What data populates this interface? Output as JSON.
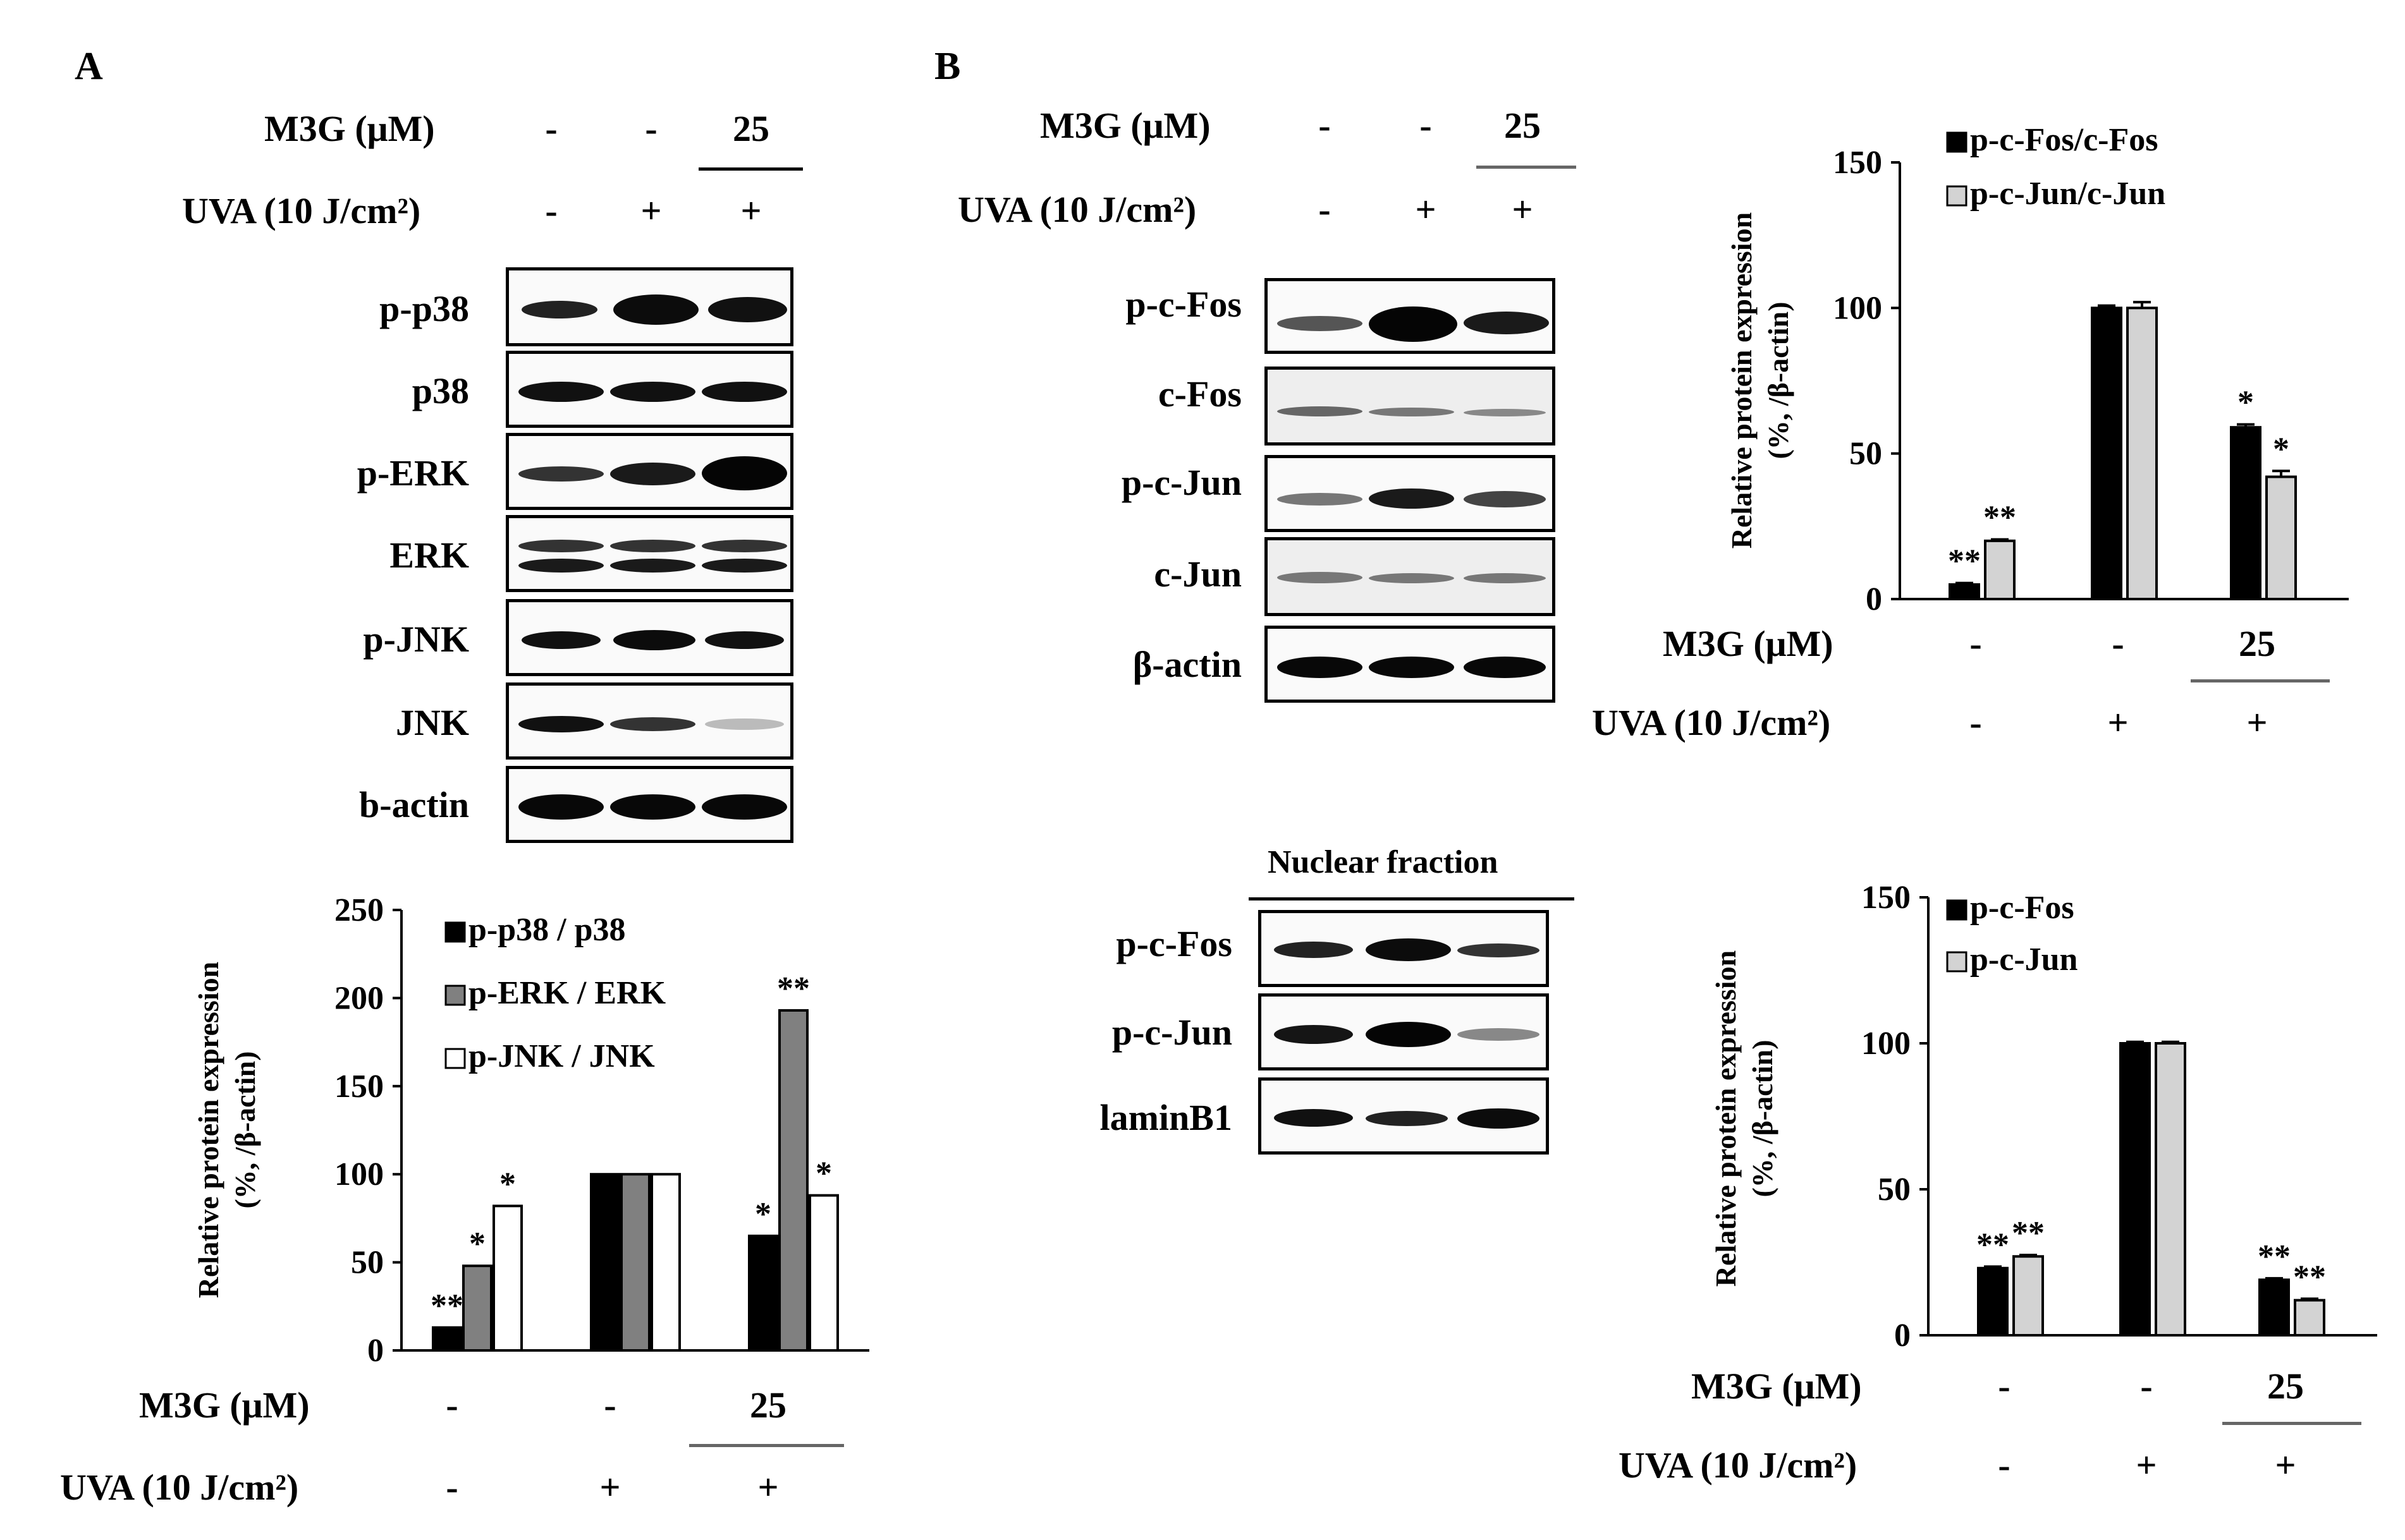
{
  "panels": {
    "a": "A",
    "b": "B"
  },
  "conditions": {
    "m3g_label": "M3G (μM)",
    "uva_label": "UVA (10 J/cm²)",
    "m3g_values": [
      "-",
      "-",
      "25"
    ],
    "uva_values": [
      "-",
      "+",
      "+"
    ]
  },
  "blots": {
    "a_labels": [
      "p-p38",
      "p38",
      "p-ERK",
      "ERK",
      "p-JNK",
      "JNK",
      "b-actin"
    ],
    "b_labels": [
      "p-c-Fos",
      "c-Fos",
      "p-c-Jun",
      "c-Jun",
      "β-actin"
    ],
    "nuclear_title": "Nuclear fraction",
    "nuclear_labels": [
      "p-c-Fos",
      "p-c-Jun",
      "laminB1"
    ]
  },
  "chart_data": [
    {
      "type": "bar",
      "ylabel": "Relative protein expression",
      "ylabel2": "(%, /β-actin)",
      "ylim": [
        0,
        250
      ],
      "yticks": [
        "0",
        "50",
        "100",
        "150",
        "200",
        "250"
      ],
      "groups": 3,
      "series": [
        {
          "name": "p-p38 / p38",
          "values": [
            13,
            100,
            65
          ],
          "stars": [
            "**",
            "",
            "*"
          ],
          "color": "#000000"
        },
        {
          "name": "p-ERK / ERK",
          "values": [
            48,
            100,
            193
          ],
          "stars": [
            "*",
            "",
            "**"
          ],
          "color": "#808080"
        },
        {
          "name": "p-JNK / JNK",
          "values": [
            82,
            100,
            88
          ],
          "stars": [
            "*",
            "",
            "*"
          ],
          "color": "#ffffff"
        }
      ]
    },
    {
      "type": "bar",
      "ylabel": "Relative protein expression",
      "ylabel2": "(%, /β-actin)",
      "ylim": [
        0,
        150
      ],
      "yticks": [
        "0",
        "50",
        "100",
        "150"
      ],
      "groups": 3,
      "series": [
        {
          "name": "p-c-Fos/c-Fos",
          "values": [
            5,
            100,
            59
          ],
          "errors": [
            0.5,
            0.8,
            1
          ],
          "stars": [
            "**",
            "",
            "*"
          ],
          "color": "#000000"
        },
        {
          "name": "p-c-Jun/c-Jun",
          "values": [
            20,
            100,
            42
          ],
          "errors": [
            0.5,
            2,
            2
          ],
          "stars": [
            "**",
            "",
            "*"
          ],
          "color": "#d3d3d3"
        }
      ]
    },
    {
      "type": "bar",
      "ylabel": "Relative protein expression",
      "ylabel2": "(%, /β-actin)",
      "ylim": [
        0,
        150
      ],
      "yticks": [
        "0",
        "50",
        "100",
        "150"
      ],
      "groups": 3,
      "series": [
        {
          "name": "p-c-Fos",
          "values": [
            23,
            100,
            19
          ],
          "errors": [
            0.5,
            0.5,
            0.5
          ],
          "stars": [
            "**",
            "",
            "**"
          ],
          "color": "#000000"
        },
        {
          "name": "p-c-Jun",
          "values": [
            27,
            100,
            12
          ],
          "errors": [
            0.5,
            0.5,
            0.5
          ],
          "stars": [
            "**",
            "",
            "**"
          ],
          "color": "#d3d3d3"
        }
      ]
    }
  ]
}
